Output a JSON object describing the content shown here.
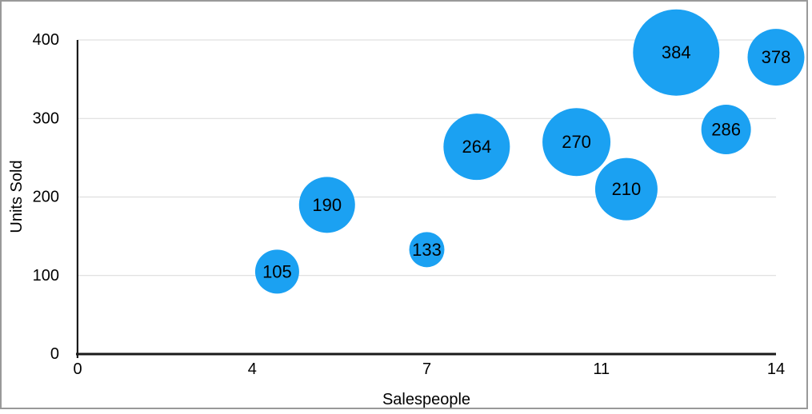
{
  "chart_data": {
    "type": "scatter",
    "variant": "bubble",
    "title": "",
    "xlabel": "Salespeople",
    "ylabel": "Units Sold",
    "xlim": [
      0,
      14
    ],
    "ylim": [
      0,
      400
    ],
    "grid": "horizontal-only",
    "legend": "none",
    "x_ticks": [
      {
        "pos": 0,
        "label": "0"
      },
      {
        "pos": 3.5,
        "label": "4"
      },
      {
        "pos": 7,
        "label": "7"
      },
      {
        "pos": 10.5,
        "label": "11"
      },
      {
        "pos": 14,
        "label": "14"
      }
    ],
    "y_ticks": [
      {
        "pos": 0,
        "label": "0"
      },
      {
        "pos": 100,
        "label": "100"
      },
      {
        "pos": 200,
        "label": "200"
      },
      {
        "pos": 300,
        "label": "300"
      },
      {
        "pos": 400,
        "label": "400"
      }
    ],
    "series": [
      {
        "name": "Units Sold",
        "points": [
          {
            "x": 4,
            "y": 105,
            "label": "105",
            "bubble_radius_px": 27.5
          },
          {
            "x": 5,
            "y": 190,
            "label": "190",
            "bubble_radius_px": 35
          },
          {
            "x": 7,
            "y": 133,
            "label": "133",
            "bubble_radius_px": 22
          },
          {
            "x": 8,
            "y": 264,
            "label": "264",
            "bubble_radius_px": 41.5
          },
          {
            "x": 10,
            "y": 270,
            "label": "270",
            "bubble_radius_px": 42.5
          },
          {
            "x": 11,
            "y": 210,
            "label": "210",
            "bubble_radius_px": 39
          },
          {
            "x": 12,
            "y": 384,
            "label": "384",
            "bubble_radius_px": 54
          },
          {
            "x": 13,
            "y": 286,
            "label": "286",
            "bubble_radius_px": 31
          },
          {
            "x": 14,
            "y": 378,
            "label": "378",
            "bubble_radius_px": 35.5
          }
        ]
      }
    ]
  },
  "colors": {
    "background": "#FFFFFF",
    "frame_border": "#999999",
    "bubble_fill": "#1BA1F2",
    "bubble_label": "#000000",
    "gridline": "#D9D9D9",
    "axis_line": "#1A1A1A",
    "tick_text": "#000000",
    "axis_title_text": "#000000"
  }
}
